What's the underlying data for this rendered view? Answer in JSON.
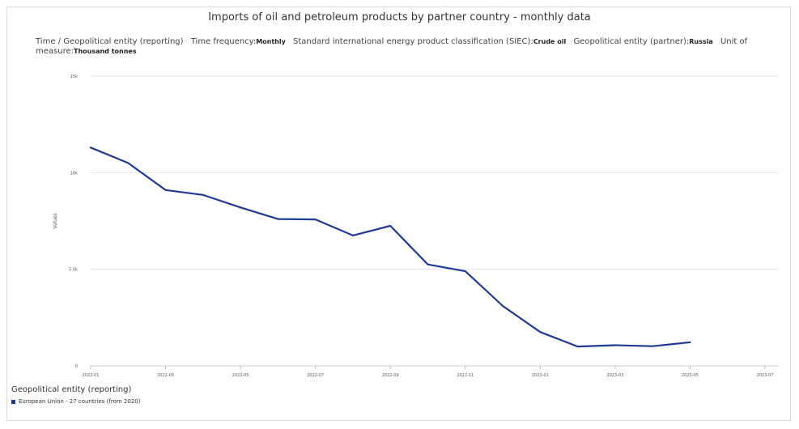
{
  "chart_data": {
    "type": "line",
    "title": "Imports of oil and petroleum products by partner country - monthly data",
    "filters": [
      {
        "label": "Time / Geopolitical entity (reporting)",
        "value": ""
      },
      {
        "label": "Time frequency:",
        "value": "Monthly"
      },
      {
        "label": "Standard international energy product classification (SIEC):",
        "value": "Crude oil"
      },
      {
        "label": "Geopolitical entity (partner):",
        "value": "Russia"
      },
      {
        "label": "Unit of measure:",
        "value": "Thousand tonnes"
      }
    ],
    "ylabel": "Values",
    "ylim": [
      0,
      15000
    ],
    "y_ticks": [
      {
        "value": 0,
        "label": "0"
      },
      {
        "value": 5000,
        "label": "5.0k"
      },
      {
        "value": 10000,
        "label": "10k"
      },
      {
        "value": 15000,
        "label": "15k"
      }
    ],
    "x_ticks": [
      "2022-01",
      "2022-03",
      "2022-05",
      "2022-07",
      "2022-09",
      "2022-11",
      "2023-01",
      "2023-03",
      "2023-05",
      "2023-07"
    ],
    "x": [
      "2022-01",
      "2022-02",
      "2022-03",
      "2022-04",
      "2022-05",
      "2022-06",
      "2022-07",
      "2022-08",
      "2022-09",
      "2022-10",
      "2022-11",
      "2022-12",
      "2023-01",
      "2023-02",
      "2023-03",
      "2023-04",
      "2023-05"
    ],
    "series": [
      {
        "name": "European Union - 27 countries (from 2020)",
        "color": "#1f3a93",
        "values": [
          11300,
          10500,
          9100,
          8850,
          8200,
          7600,
          7580,
          6750,
          7250,
          5250,
          4900,
          3100,
          1750,
          1000,
          1070,
          1020,
          1220
        ]
      }
    ],
    "grid": true,
    "legend_title": "Geopolitical entity (reporting)",
    "legend_position": "bottom-left"
  }
}
